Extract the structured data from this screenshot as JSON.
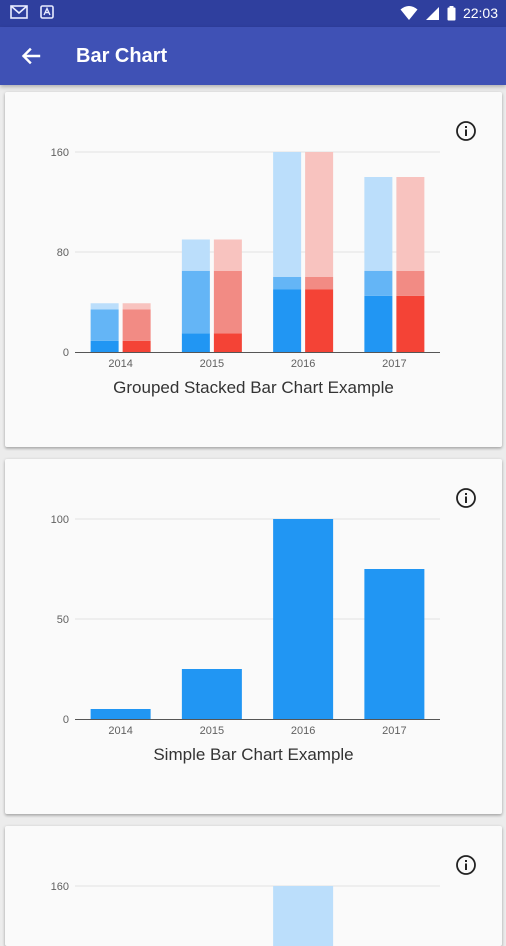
{
  "status_bar": {
    "time": "22:03",
    "left_icons": [
      "gmail-icon",
      "notification-icon"
    ],
    "right_icons": [
      "wifi-icon",
      "signal-icon",
      "battery-icon"
    ]
  },
  "app_bar": {
    "title": "Bar Chart",
    "back_icon": "arrow-back-icon"
  },
  "colors": {
    "status_bar": "#2f3f9e",
    "app_bar": "#3f51b5",
    "blue_dark": "#2196f3",
    "blue_mid": "#64b5f6",
    "blue_light": "#bbdefb",
    "red_dark": "#f44336",
    "red_mid": "#f28b84",
    "red_light": "#f8c3bf",
    "axis": "#555555",
    "grid": "#e3e3e3"
  },
  "chart_data": [
    {
      "type": "bar",
      "stacked": true,
      "grouped": true,
      "title": "Grouped Stacked Bar Chart Example",
      "categories": [
        "2014",
        "2015",
        "2016",
        "2017"
      ],
      "ylim": [
        0,
        160
      ],
      "yticks": [
        0,
        80,
        160
      ],
      "grid": true,
      "info_icon": "info-icon",
      "groups": [
        {
          "color_key": [
            "blue_dark",
            "blue_mid",
            "blue_light"
          ],
          "series": [
            {
              "values": [
                9,
                15,
                50,
                45
              ]
            },
            {
              "values": [
                25,
                50,
                10,
                20
              ]
            },
            {
              "values": [
                5,
                25,
                100,
                75
              ]
            }
          ]
        },
        {
          "color_key": [
            "red_dark",
            "red_mid",
            "red_light"
          ],
          "series": [
            {
              "values": [
                9,
                15,
                50,
                45
              ]
            },
            {
              "values": [
                25,
                50,
                10,
                20
              ]
            },
            {
              "values": [
                5,
                25,
                100,
                75
              ]
            }
          ]
        }
      ]
    },
    {
      "type": "bar",
      "title": "Simple Bar Chart Example",
      "categories": [
        "2014",
        "2015",
        "2016",
        "2017"
      ],
      "values": [
        5,
        25,
        100,
        75
      ],
      "ylim": [
        0,
        100
      ],
      "yticks": [
        0,
        50,
        100
      ],
      "grid": true,
      "info_icon": "info-icon"
    },
    {
      "type": "bar",
      "title": "",
      "ylim": [
        0,
        160
      ],
      "yticks": [
        160
      ],
      "grid": true,
      "info_icon": "info-icon",
      "partially_visible": true
    }
  ]
}
